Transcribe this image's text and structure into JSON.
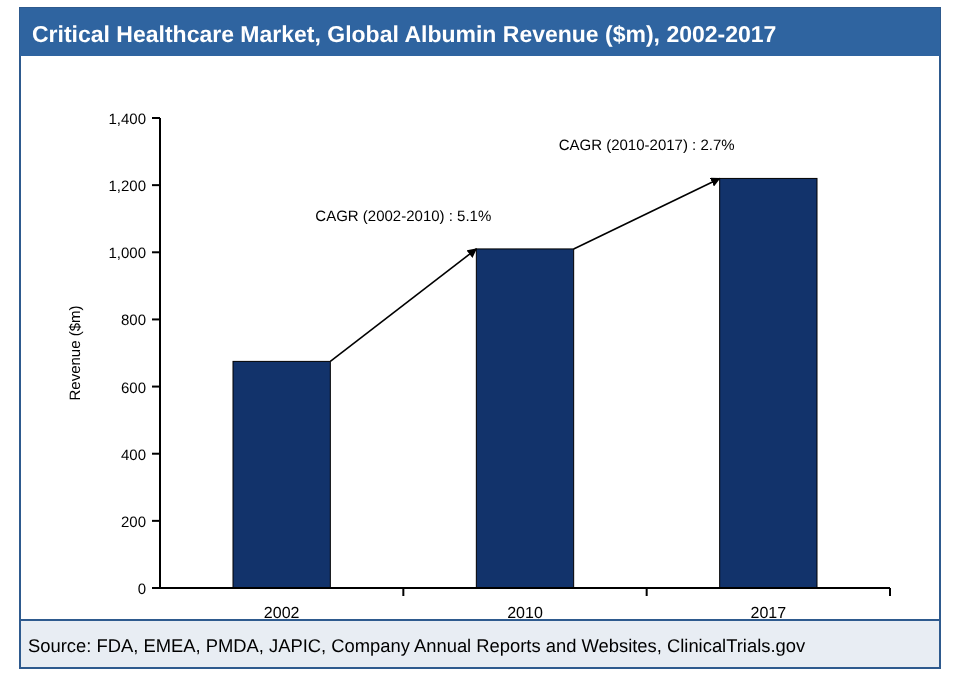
{
  "chart_data": {
    "type": "bar",
    "title": "Critical Healthcare Market, Global Albumin Revenue ($m), 2002-2017",
    "ylabel": "Revenue ($m)",
    "categories": [
      "2002",
      "2010",
      "2017"
    ],
    "values": [
      675,
      1010,
      1220
    ],
    "color": "#12336b",
    "ylim": [
      0,
      1400
    ],
    "yticks": [
      0,
      {
        "value": 200,
        "label": "200"
      },
      {
        "value": 400,
        "label": "400"
      },
      {
        "value": 600,
        "label": "600"
      },
      {
        "value": 800,
        "label": "800"
      },
      {
        "value": 1000,
        "label": "1,000"
      },
      {
        "value": 1200,
        "label": "1,200"
      },
      {
        "value": 1400,
        "label": "1,400"
      }
    ],
    "grid": false,
    "annotations": [
      "CAGR (2002-2010) : 5.1%",
      "CAGR (2010-2017) : 2.7%",
      "Source: FDA, EMEA, PMDA, JAPIC, Company Annual Reports and Websites, ClinicalTrials.gov"
    ]
  }
}
